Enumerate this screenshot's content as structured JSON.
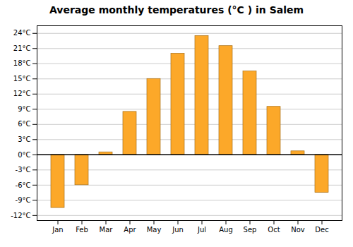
{
  "chart_data": {
    "type": "bar",
    "title": "Average monthly temperatures (°C ) in Salem",
    "categories": [
      "Jan",
      "Feb",
      "Mar",
      "Apr",
      "May",
      "Jun",
      "Jul",
      "Aug",
      "Sep",
      "Oct",
      "Nov",
      "Dec"
    ],
    "values": [
      -10.5,
      -6.0,
      0.5,
      8.5,
      15.0,
      20.0,
      23.5,
      21.5,
      16.5,
      9.5,
      0.7,
      -7.5
    ],
    "color": "#FCA829",
    "ylim": [
      -13,
      25.5
    ],
    "yticks": [
      {
        "value": -12,
        "label": "-12°C"
      },
      {
        "value": -9,
        "label": "-9°C"
      },
      {
        "value": -6,
        "label": "-6°C"
      },
      {
        "value": -3,
        "label": "-3°C"
      },
      {
        "value": 0,
        "label": "0°C"
      },
      {
        "value": 3,
        "label": "3°C"
      },
      {
        "value": 6,
        "label": "6°C"
      },
      {
        "value": 9,
        "label": "9°C"
      },
      {
        "value": 12,
        "label": "12°C"
      },
      {
        "value": 15,
        "label": "15°C"
      },
      {
        "value": 18,
        "label": "18°C"
      },
      {
        "value": 21,
        "label": "21°C"
      },
      {
        "value": 24,
        "label": "24°C"
      }
    ],
    "grid": true
  }
}
